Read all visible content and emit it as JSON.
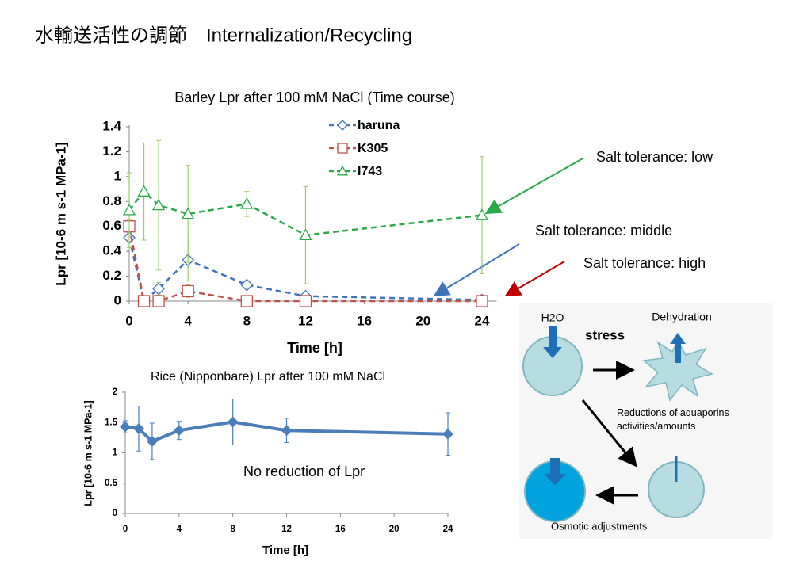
{
  "title": "水輸送活性の調節　Internalization/Recycling",
  "chart_data": [
    {
      "type": "line",
      "title": "Barley Lpr after 100 mM NaCl   (Time course)",
      "x_label": "Time [h]",
      "y_label": "Lpr  [10-6 m s-1 MPa-1]",
      "x": [
        0,
        1,
        2,
        4,
        8,
        12,
        24
      ],
      "xlim": [
        0,
        25
      ],
      "xticks": [
        0,
        4,
        8,
        12,
        16,
        20,
        24
      ],
      "ylim": [
        0,
        1.4
      ],
      "yticks": [
        0,
        0.2,
        0.4,
        0.6,
        0.8,
        1,
        1.2,
        1.4
      ],
      "dashed": true,
      "series": [
        {
          "name": "haruna",
          "color": "#3f74b8",
          "marker": "diamond",
          "values": [
            0.51,
            0.0,
            0.1,
            0.33,
            0.13,
            0.04,
            0.01
          ],
          "errors": [
            0.1,
            0.02,
            0.05,
            0.17,
            0.03,
            0.02,
            0.01
          ]
        },
        {
          "name": "K305",
          "color": "#c0504d",
          "marker": "square",
          "values": [
            0.6,
            0.0,
            0.0,
            0.08,
            0.0,
            0.0,
            0.0
          ],
          "errors": [
            0.05,
            0.01,
            0.01,
            0.05,
            0.01,
            0.01,
            0.01
          ]
        },
        {
          "name": "I743",
          "color": "#2aa84a",
          "marker": "triangle",
          "values": [
            0.73,
            0.88,
            0.77,
            0.7,
            0.78,
            0.53,
            0.69
          ],
          "errors": [
            0.3,
            0.39,
            0.52,
            0.39,
            0.1,
            0.39,
            0.47
          ]
        }
      ],
      "annotations": [
        {
          "text": "Salt tolerance: low",
          "color": "#2aa84a"
        },
        {
          "text": "Salt tolerance: middle",
          "color": "#3f74b8"
        },
        {
          "text": "Salt tolerance:  high",
          "color": "#c00000"
        }
      ]
    },
    {
      "type": "line",
      "title": "Rice (Nipponbare) Lpr after 100 mM NaCl",
      "x_label": "Time [h]",
      "y_label": "Lpr  [10-6 m s-1 MPa-1]",
      "x": [
        0,
        1,
        2,
        4,
        8,
        12,
        24
      ],
      "xlim": [
        0,
        24
      ],
      "xticks": [
        0,
        4,
        8,
        12,
        16,
        20,
        24
      ],
      "ylim": [
        0,
        2
      ],
      "yticks": [
        0,
        0.5,
        1,
        1.5,
        2
      ],
      "dashed": false,
      "series": [
        {
          "name": "Nipponbare",
          "color": "#4a7ebb",
          "marker": "diamond",
          "values": [
            1.43,
            1.4,
            1.19,
            1.37,
            1.51,
            1.37,
            1.31
          ],
          "errors": [
            0.1,
            0.37,
            0.3,
            0.15,
            0.38,
            0.2,
            0.35
          ]
        }
      ],
      "annotations": [
        {
          "text": "No reduction of Lpr",
          "color": "#000000"
        }
      ]
    }
  ],
  "diagram": {
    "water": "H2O",
    "stress": "stress",
    "dehydration": "Dehydration",
    "reduction": "Reductions of aquaporins activities/amounts",
    "osmotic": "Osmotic adjustments"
  }
}
